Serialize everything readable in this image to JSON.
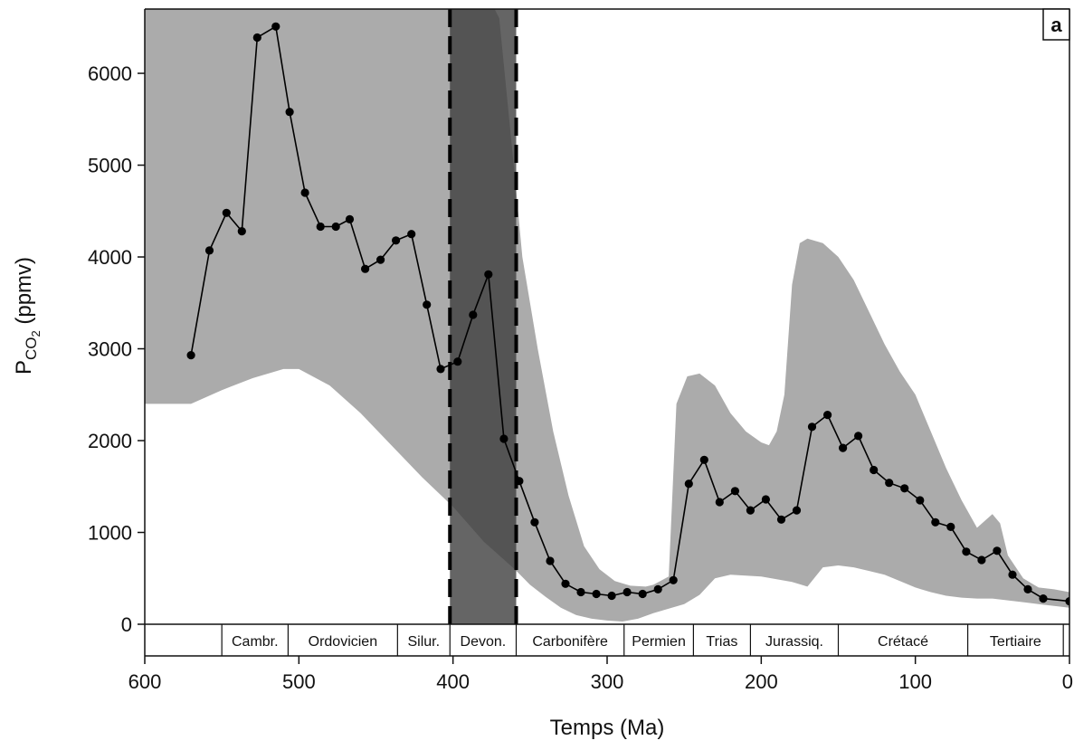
{
  "chart_data": {
    "type": "line",
    "panel_label": "a",
    "xlabel": "Temps (Ma)",
    "ylabel": {
      "main": "P",
      "sub1": "CO",
      "sub2": "2",
      "unit": " (ppmv)"
    },
    "xlim": [
      600,
      0
    ],
    "ylim": [
      0,
      6700
    ],
    "x_reversed": true,
    "x_ticks": [
      600,
      500,
      400,
      300,
      200,
      100,
      0
    ],
    "y_ticks": [
      0,
      1000,
      2000,
      3000,
      4000,
      5000,
      6000
    ],
    "grid": false,
    "series": [
      {
        "x": [
          570,
          558,
          547,
          537,
          527,
          515,
          506,
          496,
          486,
          476,
          467,
          457,
          447,
          437,
          427,
          417,
          408,
          397,
          387,
          377,
          367,
          357,
          347,
          337,
          327,
          317,
          307,
          297,
          287,
          277,
          267,
          257,
          247,
          237,
          227,
          217,
          207,
          197,
          187,
          177,
          167,
          157,
          147,
          137,
          127,
          117,
          107,
          97,
          87,
          77,
          67,
          57,
          47,
          37,
          27,
          17,
          0
        ],
        "y": [
          2930,
          4070,
          4480,
          4280,
          6390,
          6510,
          5580,
          4700,
          4330,
          4330,
          4410,
          3870,
          3970,
          4180,
          4250,
          3480,
          2780,
          2860,
          3370,
          3810,
          2020,
          1560,
          1110,
          690,
          440,
          350,
          330,
          310,
          350,
          330,
          380,
          480,
          1530,
          1790,
          1330,
          1450,
          1240,
          1360,
          1140,
          1240,
          2150,
          2280,
          1920,
          2050,
          1680,
          1540,
          1480,
          1350,
          1110,
          1060,
          790,
          700,
          800,
          540,
          380,
          280,
          250
        ]
      }
    ],
    "uncertainty_band": {
      "upper": {
        "x": [
          600,
          420,
          373,
          370,
          360,
          355,
          345,
          335,
          325,
          315,
          305,
          295,
          285,
          275,
          270,
          260,
          255,
          248,
          240,
          230,
          220,
          210,
          200,
          195,
          190,
          185,
          180,
          175,
          170,
          160,
          150,
          140,
          130,
          120,
          110,
          100,
          90,
          80,
          70,
          60,
          50,
          45,
          40,
          30,
          20,
          10,
          0
        ],
        "y": [
          6700,
          6700,
          6700,
          6600,
          4900,
          4000,
          3000,
          2100,
          1400,
          850,
          600,
          470,
          420,
          410,
          430,
          520,
          2400,
          2700,
          2730,
          2600,
          2300,
          2100,
          1980,
          1950,
          2100,
          2500,
          3700,
          4150,
          4200,
          4150,
          4000,
          3750,
          3400,
          3050,
          2750,
          2500,
          2100,
          1700,
          1350,
          1050,
          1200,
          1100,
          750,
          500,
          400,
          380,
          350
        ]
      },
      "lower": {
        "x": [
          600,
          570,
          550,
          530,
          510,
          500,
          480,
          460,
          440,
          420,
          400,
          380,
          360,
          350,
          340,
          330,
          320,
          310,
          300,
          290,
          280,
          270,
          260,
          250,
          240,
          230,
          220,
          210,
          200,
          190,
          180,
          170,
          160,
          150,
          140,
          130,
          120,
          110,
          100,
          90,
          80,
          70,
          60,
          50,
          40,
          30,
          20,
          10,
          0
        ],
        "y": [
          2400,
          2400,
          2550,
          2680,
          2780,
          2780,
          2600,
          2300,
          1950,
          1600,
          1280,
          900,
          600,
          430,
          300,
          180,
          100,
          60,
          40,
          30,
          60,
          120,
          170,
          220,
          320,
          500,
          540,
          530,
          520,
          490,
          460,
          410,
          620,
          640,
          620,
          580,
          540,
          470,
          400,
          350,
          310,
          290,
          280,
          280,
          260,
          240,
          220,
          200,
          180
        ]
      }
    },
    "highlight_range": [
      402,
      359
    ],
    "periods": [
      {
        "label": "",
        "start": 600,
        "end": 550
      },
      {
        "label": "Cambr.",
        "start": 550,
        "end": 507
      },
      {
        "label": "Ordovicien",
        "start": 507,
        "end": 436
      },
      {
        "label": "Silur.",
        "start": 436,
        "end": 402
      },
      {
        "label": "Devon.",
        "start": 402,
        "end": 359
      },
      {
        "label": "Carbonifère",
        "start": 359,
        "end": 289
      },
      {
        "label": "Permien",
        "start": 289,
        "end": 244
      },
      {
        "label": "Trias",
        "start": 244,
        "end": 207
      },
      {
        "label": "Jurassiq.",
        "start": 207,
        "end": 150
      },
      {
        "label": "Crétacé",
        "start": 150,
        "end": 66
      },
      {
        "label": "Tertiaire",
        "start": 66,
        "end": 4
      },
      {
        "label": "",
        "start": 4,
        "end": 0
      }
    ],
    "colors": {
      "band": "#ababab",
      "highlight": "#3f3f3f",
      "highlight_opacity": 0.8,
      "line": "#000000",
      "marker": "#000000",
      "axis": "#111111"
    }
  }
}
